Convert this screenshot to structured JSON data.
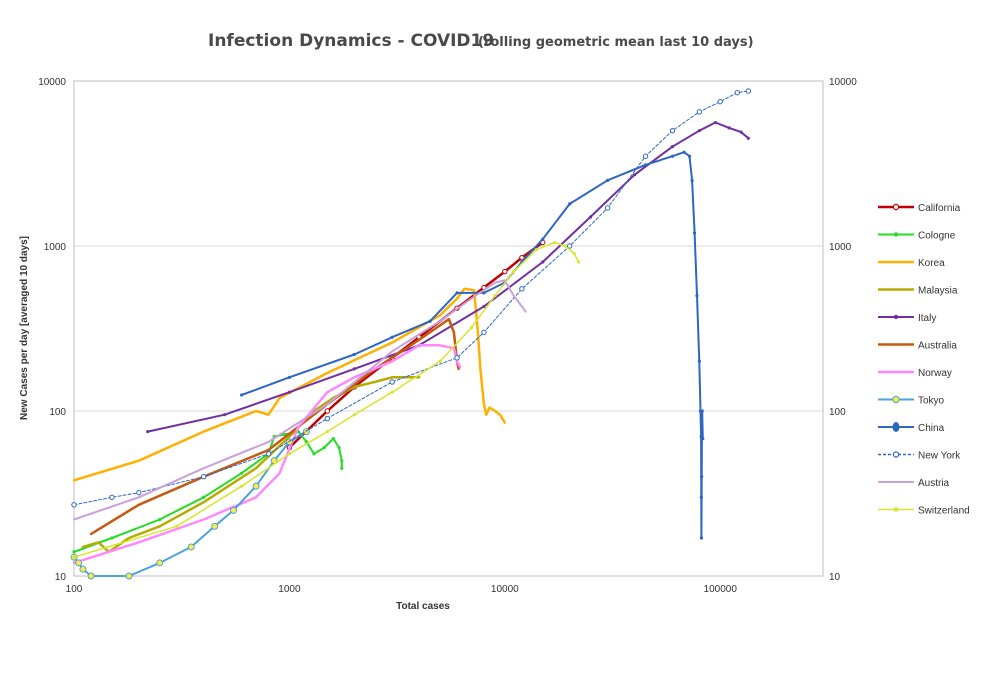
{
  "chart_data": {
    "type": "line",
    "title": "Infection Dynamics  - COVID19",
    "subtitle": "(rolling geometric mean last 10 days)",
    "xlabel": "Total cases",
    "ylabel": "New Cases per day [averaged 10 days]",
    "x_scale": "log",
    "y_scale": "log",
    "xlim": [
      100,
      300000
    ],
    "ylim": [
      10,
      10000
    ],
    "x_ticks": [
      "100",
      "1000",
      "10000",
      "100000"
    ],
    "y_ticks": [
      "10",
      "100",
      "1000",
      "10000"
    ],
    "y2_ticks": [
      "10",
      "100",
      "1000",
      "10000"
    ],
    "grid": "horizontal",
    "legend_position": "right",
    "series": [
      {
        "name": "California",
        "color": "#c00000",
        "width": 2.5,
        "marker": "open-circle",
        "points": [
          [
            1000,
            60
          ],
          [
            1500,
            100
          ],
          [
            2000,
            140
          ],
          [
            3000,
            210
          ],
          [
            4000,
            280
          ],
          [
            6000,
            420
          ],
          [
            8000,
            560
          ],
          [
            10000,
            700
          ],
          [
            12000,
            850
          ],
          [
            15000,
            1050
          ]
        ]
      },
      {
        "name": "Cologne",
        "color": "#22dd22",
        "width": 2,
        "marker": "dot",
        "points": [
          [
            100,
            14
          ],
          [
            150,
            17
          ],
          [
            250,
            22
          ],
          [
            400,
            30
          ],
          [
            600,
            42
          ],
          [
            800,
            55
          ],
          [
            850,
            70
          ],
          [
            950,
            72
          ],
          [
            1100,
            75
          ],
          [
            1200,
            65
          ],
          [
            1300,
            55
          ],
          [
            1450,
            60
          ],
          [
            1600,
            68
          ],
          [
            1700,
            60
          ],
          [
            1750,
            50
          ],
          [
            1750,
            45
          ]
        ]
      },
      {
        "name": "Korea",
        "color": "#ffb000",
        "width": 2.5,
        "marker": "none",
        "points": [
          [
            100,
            38
          ],
          [
            200,
            50
          ],
          [
            400,
            75
          ],
          [
            700,
            100
          ],
          [
            800,
            95
          ],
          [
            900,
            120
          ],
          [
            1500,
            170
          ],
          [
            3000,
            260
          ],
          [
            5000,
            380
          ],
          [
            6000,
            480
          ],
          [
            6500,
            550
          ],
          [
            7200,
            540
          ],
          [
            7500,
            300
          ],
          [
            7700,
            180
          ],
          [
            8000,
            110
          ],
          [
            8200,
            95
          ],
          [
            8500,
            105
          ],
          [
            9000,
            100
          ],
          [
            9500,
            95
          ],
          [
            10000,
            85
          ]
        ]
      },
      {
        "name": "Malaysia",
        "color": "#b5ad00",
        "width": 2.5,
        "marker": "none",
        "points": [
          [
            110,
            15
          ],
          [
            130,
            16
          ],
          [
            145,
            14
          ],
          [
            180,
            17
          ],
          [
            250,
            20
          ],
          [
            400,
            28
          ],
          [
            700,
            45
          ],
          [
            1000,
            70
          ],
          [
            1300,
            100
          ],
          [
            1600,
            120
          ],
          [
            2000,
            140
          ],
          [
            2500,
            150
          ],
          [
            3000,
            160
          ],
          [
            3500,
            160
          ],
          [
            4000,
            160
          ]
        ]
      },
      {
        "name": "Italy",
        "color": "#7030a0",
        "width": 2,
        "marker": "dot",
        "points": [
          [
            220,
            75
          ],
          [
            500,
            95
          ],
          [
            1000,
            130
          ],
          [
            2000,
            180
          ],
          [
            4000,
            250
          ],
          [
            8000,
            430
          ],
          [
            15000,
            800
          ],
          [
            25000,
            1500
          ],
          [
            40000,
            2700
          ],
          [
            60000,
            4000
          ],
          [
            80000,
            5000
          ],
          [
            95000,
            5600
          ],
          [
            110000,
            5200
          ],
          [
            125000,
            4900
          ],
          [
            135000,
            4500
          ]
        ]
      },
      {
        "name": "Australia",
        "color": "#c55a11",
        "width": 2.5,
        "marker": "none",
        "points": [
          [
            120,
            18
          ],
          [
            200,
            27
          ],
          [
            400,
            40
          ],
          [
            800,
            58
          ],
          [
            1500,
            110
          ],
          [
            2500,
            180
          ],
          [
            4000,
            270
          ],
          [
            5000,
            330
          ],
          [
            5500,
            360
          ],
          [
            5800,
            300
          ],
          [
            6000,
            200
          ],
          [
            6100,
            180
          ]
        ]
      },
      {
        "name": "Norway",
        "color": "#ff88ff",
        "width": 2.5,
        "marker": "none",
        "points": [
          [
            100,
            12
          ],
          [
            200,
            16
          ],
          [
            400,
            22
          ],
          [
            700,
            30
          ],
          [
            900,
            42
          ],
          [
            1100,
            80
          ],
          [
            1500,
            130
          ],
          [
            2000,
            160
          ],
          [
            3000,
            200
          ],
          [
            4000,
            250
          ],
          [
            5000,
            250
          ],
          [
            5800,
            240
          ],
          [
            6000,
            200
          ],
          [
            6200,
            185
          ]
        ]
      },
      {
        "name": "Tokyo",
        "color": "#4ba3d9",
        "width": 2,
        "marker": "yellow-circle",
        "points": [
          [
            100,
            13
          ],
          [
            105,
            12
          ],
          [
            110,
            11
          ],
          [
            120,
            10
          ],
          [
            180,
            10
          ],
          [
            250,
            12
          ],
          [
            350,
            15
          ],
          [
            450,
            20
          ],
          [
            550,
            25
          ],
          [
            700,
            35
          ],
          [
            850,
            50
          ],
          [
            1000,
            65
          ],
          [
            1200,
            75
          ]
        ]
      },
      {
        "name": "China",
        "color": "#2e66c4",
        "width": 2,
        "marker": "dot",
        "points": [
          [
            600,
            125
          ],
          [
            1000,
            160
          ],
          [
            2000,
            220
          ],
          [
            3000,
            280
          ],
          [
            4500,
            350
          ],
          [
            6000,
            520
          ],
          [
            8000,
            520
          ],
          [
            10000,
            600
          ],
          [
            12000,
            800
          ],
          [
            15000,
            1100
          ],
          [
            20000,
            1800
          ],
          [
            30000,
            2500
          ],
          [
            45000,
            3100
          ],
          [
            60000,
            3500
          ],
          [
            68000,
            3700
          ],
          [
            72000,
            3500
          ],
          [
            74000,
            2500
          ],
          [
            76000,
            1200
          ],
          [
            78000,
            500
          ],
          [
            80000,
            200
          ],
          [
            81000,
            100
          ],
          [
            81500,
            70
          ],
          [
            81700,
            30
          ],
          [
            81800,
            17
          ],
          [
            82000,
            40
          ],
          [
            82200,
            70
          ],
          [
            82500,
            100
          ],
          [
            83000,
            68
          ]
        ]
      },
      {
        "name": "New York",
        "color": "#2e66c4",
        "width": 1,
        "dashed": true,
        "marker": "open-circle",
        "points": [
          [
            100,
            27
          ],
          [
            150,
            30
          ],
          [
            200,
            32
          ],
          [
            400,
            40
          ],
          [
            800,
            55
          ],
          [
            1500,
            90
          ],
          [
            3000,
            150
          ],
          [
            6000,
            210
          ],
          [
            8000,
            300
          ],
          [
            12000,
            550
          ],
          [
            20000,
            1000
          ],
          [
            30000,
            1700
          ],
          [
            45000,
            3500
          ],
          [
            60000,
            5000
          ],
          [
            80000,
            6500
          ],
          [
            100000,
            7500
          ],
          [
            120000,
            8500
          ],
          [
            135000,
            8700
          ]
        ]
      },
      {
        "name": "Austria",
        "color": "#c9a0dc",
        "width": 2,
        "marker": "none",
        "points": [
          [
            100,
            22
          ],
          [
            200,
            30
          ],
          [
            400,
            45
          ],
          [
            800,
            65
          ],
          [
            1500,
            110
          ],
          [
            3000,
            230
          ],
          [
            5000,
            350
          ],
          [
            7000,
            480
          ],
          [
            9000,
            600
          ],
          [
            10000,
            620
          ],
          [
            11000,
            500
          ],
          [
            12000,
            430
          ],
          [
            12500,
            400
          ]
        ]
      },
      {
        "name": "Switzerland",
        "color": "#d8e62a",
        "width": 1.5,
        "marker": "dot",
        "points": [
          [
            100,
            13
          ],
          [
            300,
            20
          ],
          [
            600,
            35
          ],
          [
            1000,
            55
          ],
          [
            1500,
            75
          ],
          [
            2000,
            95
          ],
          [
            3000,
            130
          ],
          [
            5000,
            200
          ],
          [
            7000,
            320
          ],
          [
            9000,
            500
          ],
          [
            11000,
            700
          ],
          [
            14000,
            950
          ],
          [
            17000,
            1050
          ],
          [
            19000,
            1000
          ],
          [
            21000,
            900
          ],
          [
            22000,
            800
          ]
        ]
      }
    ]
  }
}
